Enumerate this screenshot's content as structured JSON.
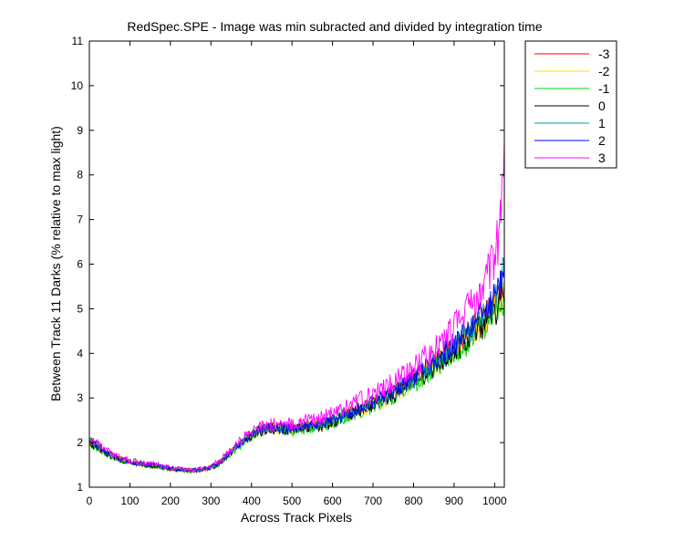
{
  "chart_data": {
    "type": "line",
    "title": "RedSpec.SPE - Image was min subracted and divided by integration time",
    "xlabel": "Across Track Pixels",
    "ylabel": "Between Track 11 Darks (% relative to max light)",
    "xlim": [
      0,
      1024
    ],
    "ylim": [
      1,
      11
    ],
    "xticks": [
      0,
      100,
      200,
      300,
      400,
      500,
      600,
      700,
      800,
      900,
      1000
    ],
    "yticks": [
      1,
      2,
      3,
      4,
      5,
      6,
      7,
      8,
      9,
      10,
      11
    ],
    "grid": false,
    "legend_position": "outside-top-right",
    "x": [
      0,
      20,
      40,
      60,
      80,
      100,
      120,
      140,
      160,
      180,
      200,
      220,
      240,
      260,
      280,
      300,
      320,
      340,
      360,
      380,
      400,
      420,
      440,
      460,
      480,
      500,
      520,
      540,
      560,
      580,
      600,
      620,
      640,
      660,
      680,
      700,
      720,
      740,
      760,
      780,
      800,
      820,
      840,
      860,
      880,
      900,
      920,
      940,
      960,
      980,
      1000,
      1010,
      1020,
      1024
    ],
    "series": [
      {
        "name": "-3",
        "color": "#ff0000",
        "noise": 0.45,
        "values": [
          2.05,
          1.95,
          1.8,
          1.7,
          1.63,
          1.58,
          1.55,
          1.52,
          1.5,
          1.45,
          1.42,
          1.4,
          1.38,
          1.38,
          1.4,
          1.45,
          1.55,
          1.72,
          1.9,
          2.05,
          2.2,
          2.3,
          2.35,
          2.35,
          2.32,
          2.32,
          2.35,
          2.38,
          2.42,
          2.45,
          2.5,
          2.58,
          2.65,
          2.72,
          2.8,
          2.88,
          2.97,
          3.07,
          3.18,
          3.3,
          3.42,
          3.55,
          3.7,
          3.85,
          4.0,
          4.15,
          4.32,
          4.5,
          4.7,
          4.9,
          5.15,
          5.3,
          5.5,
          5.6
        ]
      },
      {
        "name": "-2",
        "color": "#ffd700",
        "noise": 0.55,
        "values": [
          2.02,
          1.92,
          1.78,
          1.68,
          1.62,
          1.57,
          1.54,
          1.5,
          1.48,
          1.44,
          1.41,
          1.39,
          1.37,
          1.37,
          1.39,
          1.43,
          1.53,
          1.7,
          1.88,
          2.03,
          2.17,
          2.27,
          2.32,
          2.33,
          2.3,
          2.3,
          2.32,
          2.35,
          2.38,
          2.42,
          2.47,
          2.55,
          2.62,
          2.7,
          2.77,
          2.85,
          2.93,
          3.03,
          3.13,
          3.25,
          3.37,
          3.5,
          3.63,
          3.78,
          3.92,
          4.07,
          4.22,
          4.4,
          4.58,
          4.78,
          5.0,
          5.15,
          5.4,
          5.5
        ]
      },
      {
        "name": "-1",
        "color": "#00dd00",
        "noise": 0.5,
        "values": [
          1.98,
          1.88,
          1.75,
          1.66,
          1.6,
          1.55,
          1.52,
          1.49,
          1.47,
          1.43,
          1.4,
          1.38,
          1.36,
          1.36,
          1.38,
          1.42,
          1.51,
          1.68,
          1.86,
          2.0,
          2.15,
          2.25,
          2.3,
          2.3,
          2.28,
          2.27,
          2.3,
          2.32,
          2.36,
          2.4,
          2.45,
          2.52,
          2.6,
          2.67,
          2.74,
          2.82,
          2.9,
          3.0,
          3.1,
          3.22,
          3.33,
          3.45,
          3.58,
          3.72,
          3.86,
          4.0,
          4.15,
          4.3,
          4.48,
          4.65,
          4.85,
          5.0,
          5.2,
          5.3
        ]
      },
      {
        "name": "0",
        "color": "#000000",
        "noise": 0.5,
        "values": [
          2.0,
          1.9,
          1.77,
          1.67,
          1.61,
          1.56,
          1.53,
          1.5,
          1.48,
          1.44,
          1.41,
          1.39,
          1.37,
          1.37,
          1.39,
          1.43,
          1.52,
          1.69,
          1.87,
          2.02,
          2.16,
          2.26,
          2.31,
          2.31,
          2.29,
          2.29,
          2.31,
          2.34,
          2.37,
          2.41,
          2.46,
          2.54,
          2.61,
          2.69,
          2.76,
          2.84,
          2.92,
          3.02,
          3.12,
          3.24,
          3.36,
          3.48,
          3.62,
          3.76,
          3.9,
          4.05,
          4.2,
          4.37,
          4.55,
          4.75,
          4.95,
          5.1,
          5.3,
          5.4
        ]
      },
      {
        "name": "1",
        "color": "#009999",
        "noise": 0.45,
        "values": [
          2.03,
          1.93,
          1.79,
          1.69,
          1.62,
          1.57,
          1.54,
          1.51,
          1.49,
          1.45,
          1.42,
          1.4,
          1.38,
          1.38,
          1.4,
          1.44,
          1.54,
          1.71,
          1.89,
          2.04,
          2.18,
          2.28,
          2.33,
          2.34,
          2.31,
          2.31,
          2.33,
          2.36,
          2.4,
          2.44,
          2.49,
          2.57,
          2.64,
          2.72,
          2.79,
          2.87,
          2.96,
          3.06,
          3.17,
          3.29,
          3.41,
          3.54,
          3.69,
          3.84,
          3.99,
          4.15,
          4.32,
          4.5,
          4.7,
          4.92,
          5.2,
          5.4,
          5.8,
          6.0
        ]
      },
      {
        "name": "2",
        "color": "#0000ff",
        "noise": 0.45,
        "values": [
          2.04,
          1.94,
          1.8,
          1.7,
          1.63,
          1.58,
          1.55,
          1.52,
          1.5,
          1.46,
          1.43,
          1.41,
          1.39,
          1.39,
          1.41,
          1.45,
          1.55,
          1.72,
          1.9,
          2.05,
          2.19,
          2.29,
          2.34,
          2.35,
          2.32,
          2.32,
          2.34,
          2.37,
          2.41,
          2.45,
          2.5,
          2.58,
          2.66,
          2.74,
          2.81,
          2.9,
          2.99,
          3.09,
          3.2,
          3.32,
          3.45,
          3.58,
          3.73,
          3.88,
          4.04,
          4.2,
          4.38,
          4.57,
          4.78,
          5.0,
          5.3,
          5.5,
          5.9,
          6.1
        ]
      },
      {
        "name": "3",
        "color": "#ff00ff",
        "noise": 0.55,
        "values": [
          2.08,
          1.98,
          1.84,
          1.73,
          1.66,
          1.6,
          1.57,
          1.54,
          1.52,
          1.47,
          1.44,
          1.42,
          1.4,
          1.4,
          1.42,
          1.47,
          1.58,
          1.76,
          1.95,
          2.1,
          2.25,
          2.36,
          2.42,
          2.43,
          2.41,
          2.42,
          2.45,
          2.49,
          2.54,
          2.59,
          2.65,
          2.74,
          2.82,
          2.91,
          2.99,
          3.08,
          3.18,
          3.29,
          3.41,
          3.55,
          3.69,
          3.84,
          4.0,
          4.17,
          4.35,
          4.55,
          4.8,
          5.05,
          5.35,
          5.7,
          6.2,
          6.6,
          7.6,
          8.3
        ]
      }
    ]
  }
}
